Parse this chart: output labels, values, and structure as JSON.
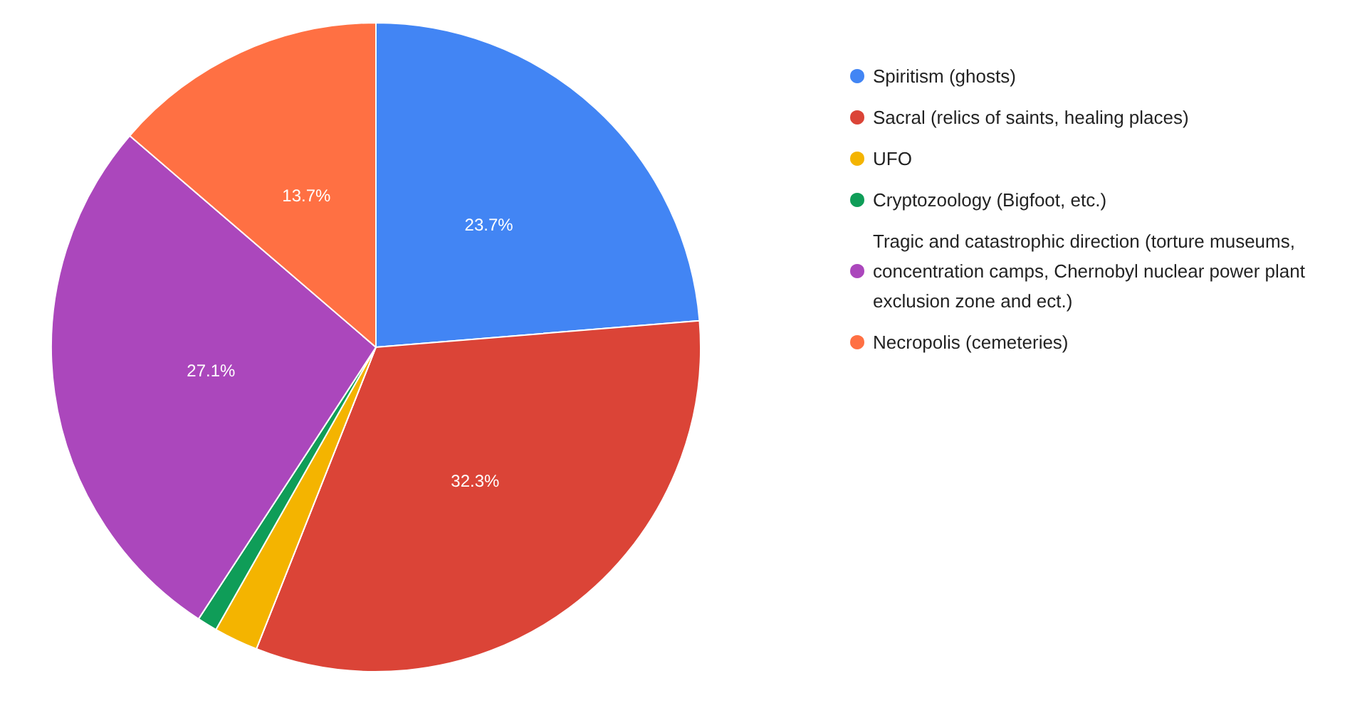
{
  "chart_data": {
    "type": "pie",
    "categories": [
      "Spiritism (ghosts)",
      "Sacral (relics of saints, healing places)",
      "UFO",
      "Cryptozoology (Bigfoot, etc.)",
      "Tragic and catastrophic direction (torture museums, concentration camps, Chernobyl nuclear power plant exclusion zone and ect.)",
      "Necropolis (cemeteries)"
    ],
    "values": [
      23.7,
      32.3,
      2.2,
      1.0,
      27.1,
      13.7
    ],
    "colors": [
      "#4285f4",
      "#db4437",
      "#f4b400",
      "#0f9d58",
      "#ab47bc",
      "#ff7043"
    ],
    "value_labels": [
      "23.7%",
      "32.3%",
      null,
      null,
      "27.1%",
      "13.7%"
    ],
    "legend": "top right"
  }
}
